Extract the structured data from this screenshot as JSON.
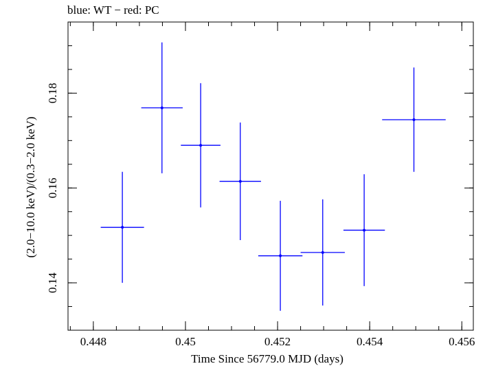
{
  "chart_data": {
    "type": "scatter",
    "title": "blue: WT − red: PC",
    "xlabel": "Time Since 56779.0 MJD (days)",
    "ylabel": "(2.0−10.0 keV)/(0.3−2.0 keV)",
    "xlim": [
      0.44745,
      0.45625
    ],
    "ylim": [
      0.13,
      0.195
    ],
    "x_ticks": [
      0.448,
      0.45,
      0.452,
      0.454,
      0.456
    ],
    "x_tick_labels": [
      "0.448",
      "0.45",
      "0.452",
      "0.454",
      "0.456"
    ],
    "y_ticks": [
      0.14,
      0.16,
      0.18
    ],
    "y_tick_labels": [
      "0.14",
      "0.16",
      "0.18"
    ],
    "grid": false,
    "series": [
      {
        "color": "#0000ff",
        "points": [
          {
            "x": 0.44863,
            "y": 0.1517,
            "xerr": 0.00047,
            "yerr": 0.0117
          },
          {
            "x": 0.44949,
            "y": 0.1769,
            "xerr": 0.00045,
            "yerr": 0.0138
          },
          {
            "x": 0.45033,
            "y": 0.169,
            "xerr": 0.00043,
            "yerr": 0.0131
          },
          {
            "x": 0.45119,
            "y": 0.1614,
            "xerr": 0.00045,
            "yerr": 0.0124
          },
          {
            "x": 0.45206,
            "y": 0.1457,
            "xerr": 0.00048,
            "yerr": 0.0116
          },
          {
            "x": 0.45298,
            "y": 0.1464,
            "xerr": 0.00048,
            "yerr": 0.0112
          },
          {
            "x": 0.45388,
            "y": 0.1511,
            "xerr": 0.00045,
            "yerr": 0.0118
          },
          {
            "x": 0.45496,
            "y": 0.1744,
            "xerr": 0.00069,
            "yerr": 0.011
          }
        ]
      }
    ]
  }
}
